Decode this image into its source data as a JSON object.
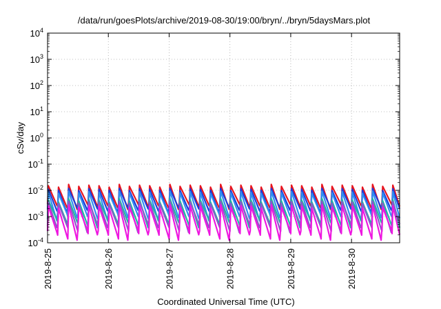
{
  "chart_data": {
    "type": "line",
    "title": "/data/run/goesPlots/archive/2019-08-30/19:00/bryn/../bryn/5daysMars.plot",
    "xlabel": "Coordinated Universal Time (UTC)",
    "ylabel": "cSv/day",
    "yscale": "log",
    "ylim": [
      0.0001,
      10000
    ],
    "xlim": [
      "2019-08-25",
      "2019-08-30T19:00"
    ],
    "xticks": [
      "2019-8-25",
      "2019-8-26",
      "2019-8-27",
      "2019-8-28",
      "2019-8-29",
      "2019-8-30"
    ],
    "ytick_base": "10",
    "ytick_exponents": [
      "-4",
      "-3",
      "-2",
      "-1",
      "0",
      "1",
      "2",
      "3",
      "4"
    ],
    "grid": true,
    "period_hours": 4.0,
    "series": [
      {
        "color": "#e8141e",
        "peak": 0.015,
        "trough": 0.003,
        "peak_var": [
          1.0,
          0.88,
          1.12,
          0.95,
          1.05
        ],
        "trough_var": [
          1.0,
          0.82,
          0.7,
          1.15,
          0.9
        ]
      },
      {
        "color": "#1f3cd8",
        "peak": 0.011,
        "trough": 0.0022,
        "peak_var": [
          1.0,
          0.92,
          1.08,
          0.9,
          1.05
        ],
        "trough_var": [
          1.0,
          0.85,
          0.7,
          1.1,
          0.9
        ]
      },
      {
        "color": "#2f8ff0",
        "peak": 0.0085,
        "trough": 0.0012,
        "peak_var": [
          1.0,
          0.9,
          1.1,
          0.95,
          1.05
        ],
        "trough_var": [
          1.0,
          0.8,
          0.65,
          1.2,
          0.85
        ]
      },
      {
        "color": "#1fb8a0",
        "peak": 0.0042,
        "trough": 0.0007,
        "peak_var": [
          1.0,
          0.85,
          1.15,
          0.95,
          1.05
        ],
        "trough_var": [
          1.0,
          0.8,
          0.6,
          1.2,
          0.9
        ]
      },
      {
        "color": "#8a5ac8",
        "peak": 0.0035,
        "trough": 0.0005,
        "peak_var": [
          1.0,
          0.9,
          1.1,
          0.92,
          1.05
        ],
        "trough_var": [
          1.0,
          0.75,
          0.55,
          1.15,
          0.85
        ]
      },
      {
        "color": "#ee18e0",
        "peak": 0.0025,
        "trough": 0.00028,
        "peak_var": [
          1.0,
          0.85,
          1.12,
          0.9,
          1.05
        ],
        "trough_var": [
          1.0,
          0.7,
          0.5,
          1.25,
          0.8
        ]
      }
    ]
  }
}
